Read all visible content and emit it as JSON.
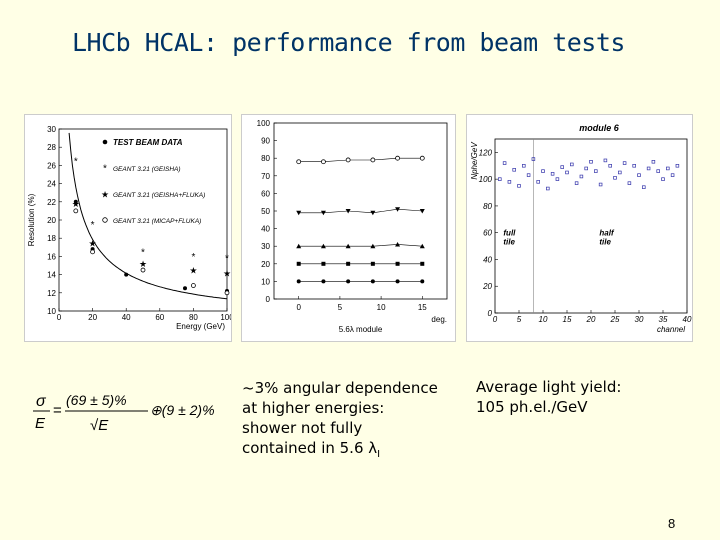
{
  "slide": {
    "title": "LHCb HCAL: performance from beam tests",
    "page_number": "8",
    "text_angular": [
      "~3% angular dependence",
      "at higher energies:",
      "shower not fully",
      "contained in 5.6 λ"
    ],
    "text_angular_sub": "I",
    "text_yield": [
      "Average light yield:",
      "105 ph.el./GeV"
    ]
  },
  "formula": {
    "lhs_num": "σ",
    "lhs_den": "E",
    "rhs_num": "(69 ± 5)%",
    "rhs_den": "√E",
    "tail": "⊕(9 ± 2)%"
  },
  "chart_data": [
    {
      "type": "scatter",
      "title": "",
      "xlabel": "Energy (GeV)",
      "ylabel": "Resolution (%)",
      "xlim": [
        0,
        100
      ],
      "ylim": [
        10,
        30
      ],
      "xticks": [
        0,
        20,
        40,
        60,
        80,
        100
      ],
      "yticks": [
        10,
        12,
        14,
        16,
        18,
        20,
        22,
        24,
        26,
        28,
        30
      ],
      "legend_position": "top-right",
      "series": [
        {
          "name": "TEST BEAM DATA",
          "marker": "filled-circle",
          "x": [
            10,
            20,
            40,
            75,
            100
          ],
          "y": [
            22.0,
            16.8,
            14.0,
            12.5,
            12.2
          ]
        },
        {
          "name": "GEANT 3.21 (GEISHA)",
          "marker": "star",
          "x": [
            10,
            20,
            50,
            80,
            100
          ],
          "y": [
            26.5,
            19.5,
            16.5,
            16.0,
            15.8
          ]
        },
        {
          "name": "GEANT 3.21 (GEISHA+FLUKA)",
          "marker": "filled-star",
          "x": [
            10,
            20,
            50,
            80,
            100
          ],
          "y": [
            21.8,
            17.5,
            15.2,
            14.5,
            14.2
          ]
        },
        {
          "name": "GEANT 3.21 (MICAP+FLUKA)",
          "marker": "open-circle",
          "x": [
            10,
            20,
            50,
            80,
            100
          ],
          "y": [
            21.0,
            16.5,
            14.5,
            12.8,
            12.0
          ]
        }
      ],
      "fit_curve": "sigma/E = 69%/sqrt(E) (+) 9%"
    },
    {
      "type": "scatter",
      "title": "",
      "xlabel": "5.6λ module",
      "xunit": "deg.",
      "xlim": [
        -3,
        18
      ],
      "ylim": [
        0,
        100
      ],
      "xticks": [
        0,
        5,
        10,
        15
      ],
      "yticks": [
        0,
        10,
        20,
        30,
        40,
        50,
        60,
        70,
        80,
        90,
        100
      ],
      "series": [
        {
          "marker": "open-circle",
          "x": [
            0,
            3,
            6,
            9,
            12,
            15
          ],
          "y": [
            78,
            78,
            79,
            79,
            80,
            80
          ]
        },
        {
          "marker": "filled-triangle-down",
          "x": [
            0,
            3,
            6,
            9,
            12,
            15
          ],
          "y": [
            49,
            49,
            50,
            49,
            51,
            50
          ]
        },
        {
          "marker": "filled-triangle-up",
          "x": [
            0,
            3,
            6,
            9,
            12,
            15
          ],
          "y": [
            30,
            30,
            30,
            30,
            31,
            30
          ]
        },
        {
          "marker": "filled-square",
          "x": [
            0,
            3,
            6,
            9,
            12,
            15
          ],
          "y": [
            20,
            20,
            20,
            20,
            20,
            20
          ]
        },
        {
          "marker": "filled-circle",
          "x": [
            0,
            3,
            6,
            9,
            12,
            15
          ],
          "y": [
            10,
            10,
            10,
            10,
            10,
            10
          ]
        }
      ]
    },
    {
      "type": "scatter",
      "title": "module 6",
      "xlabel": "channel",
      "ylabel": "Nphe/GeV",
      "xlim": [
        0,
        40
      ],
      "ylim": [
        0,
        130
      ],
      "xticks": [
        0,
        5,
        10,
        15,
        20,
        25,
        30,
        35,
        40
      ],
      "yticks": [
        0,
        20,
        40,
        60,
        80,
        100,
        120
      ],
      "annotations": [
        {
          "text": [
            "full",
            "tile"
          ],
          "x": 0.5,
          "y": 58
        },
        {
          "text": [
            "half",
            "tile"
          ],
          "x": 20.5,
          "y": 58
        }
      ],
      "divider_x": 8,
      "series": [
        {
          "marker": "open-square",
          "x": [
            1,
            2,
            3,
            4,
            5,
            6,
            7,
            8,
            9,
            10,
            11,
            12,
            13,
            14,
            15,
            16,
            17,
            18,
            19,
            20,
            21,
            22,
            23,
            24,
            25,
            26,
            27,
            28,
            29,
            30,
            31,
            32,
            33,
            34,
            35,
            36,
            37,
            38
          ],
          "y": [
            100,
            112,
            98,
            107,
            95,
            110,
            103,
            115,
            98,
            106,
            93,
            104,
            100,
            109,
            105,
            111,
            97,
            102,
            108,
            113,
            106,
            96,
            114,
            110,
            101,
            105,
            112,
            97,
            110,
            103,
            94,
            108,
            113,
            106,
            100,
            108,
            103,
            110
          ]
        }
      ]
    }
  ]
}
